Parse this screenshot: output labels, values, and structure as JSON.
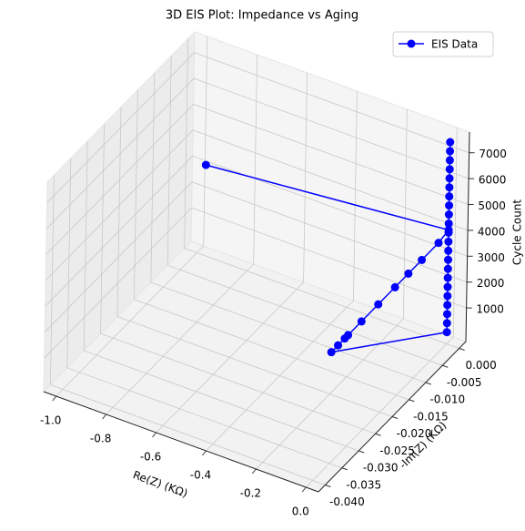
{
  "chart_data": {
    "type": "line3d",
    "title": "3D EIS Plot: Impedance vs Aging",
    "xlabel": "Re(Z) (KΩ)",
    "ylabel": "-Im(Z) (KΩ)",
    "zlabel": "Cycle Count",
    "xlim": [
      -1.05,
      0.05
    ],
    "ylim": [
      -0.042,
      0.002
    ],
    "zlim": [
      -300,
      7800
    ],
    "xticks": [
      {
        "value": -1.0,
        "label": "-1.0"
      },
      -0.8,
      -0.6,
      -0.4,
      -0.2,
      {
        "value": 0.0,
        "label": "0.0"
      }
    ],
    "yticks": [
      {
        "value": -0.04,
        "label": "-0.040"
      },
      -0.035,
      {
        "value": -0.03,
        "label": "-0.030"
      },
      -0.025,
      {
        "value": -0.02,
        "label": "-0.020"
      },
      -0.015,
      {
        "value": -0.01,
        "label": "-0.010"
      },
      -0.005,
      {
        "value": 0.0,
        "label": "0.000"
      }
    ],
    "zticks": [
      1000,
      2000,
      3000,
      4000,
      5000,
      6000,
      7000
    ],
    "grid": true,
    "legend": "upper right",
    "series": [
      {
        "name": "EIS Data",
        "color": "#0000ff",
        "x": [
          -0.97,
          0.0,
          0.0,
          0.0,
          0.0,
          0.0,
          0.0,
          0.0,
          0.0,
          0.0,
          0.0,
          0.0,
          0.0,
          0.0,
          0.0,
          0.0,
          0.0,
          0.0,
          0.0,
          0.0,
          0.0,
          0.0,
          0.0,
          0.0,
          0.0,
          0.0,
          0.0,
          0.0,
          0.0,
          0.0,
          0.0,
          0.0,
          0.0,
          0.0
        ],
        "y": [
          0.0,
          0.0,
          -0.003,
          -0.008,
          -0.012,
          -0.016,
          -0.021,
          -0.026,
          -0.03,
          -0.031,
          -0.033,
          -0.035,
          0.0,
          0.0,
          0.0,
          0.0,
          0.0,
          0.0,
          0.0,
          0.0,
          0.0,
          0.0,
          0.0,
          0.0,
          0.0,
          0.0,
          0.0,
          0.0,
          0.0,
          0.0,
          0.0,
          0.0,
          0.0,
          0.0
        ],
        "z": [
          3200,
          4100,
          4000,
          4000,
          4000,
          4000,
          4000,
          4000,
          4000,
          4000,
          4000,
          4000,
          150,
          500,
          850,
          1200,
          1550,
          1900,
          2250,
          2600,
          2950,
          3300,
          3650,
          4000,
          4350,
          4700,
          5050,
          5400,
          5750,
          6100,
          6450,
          6800,
          7150,
          7500
        ]
      }
    ]
  }
}
